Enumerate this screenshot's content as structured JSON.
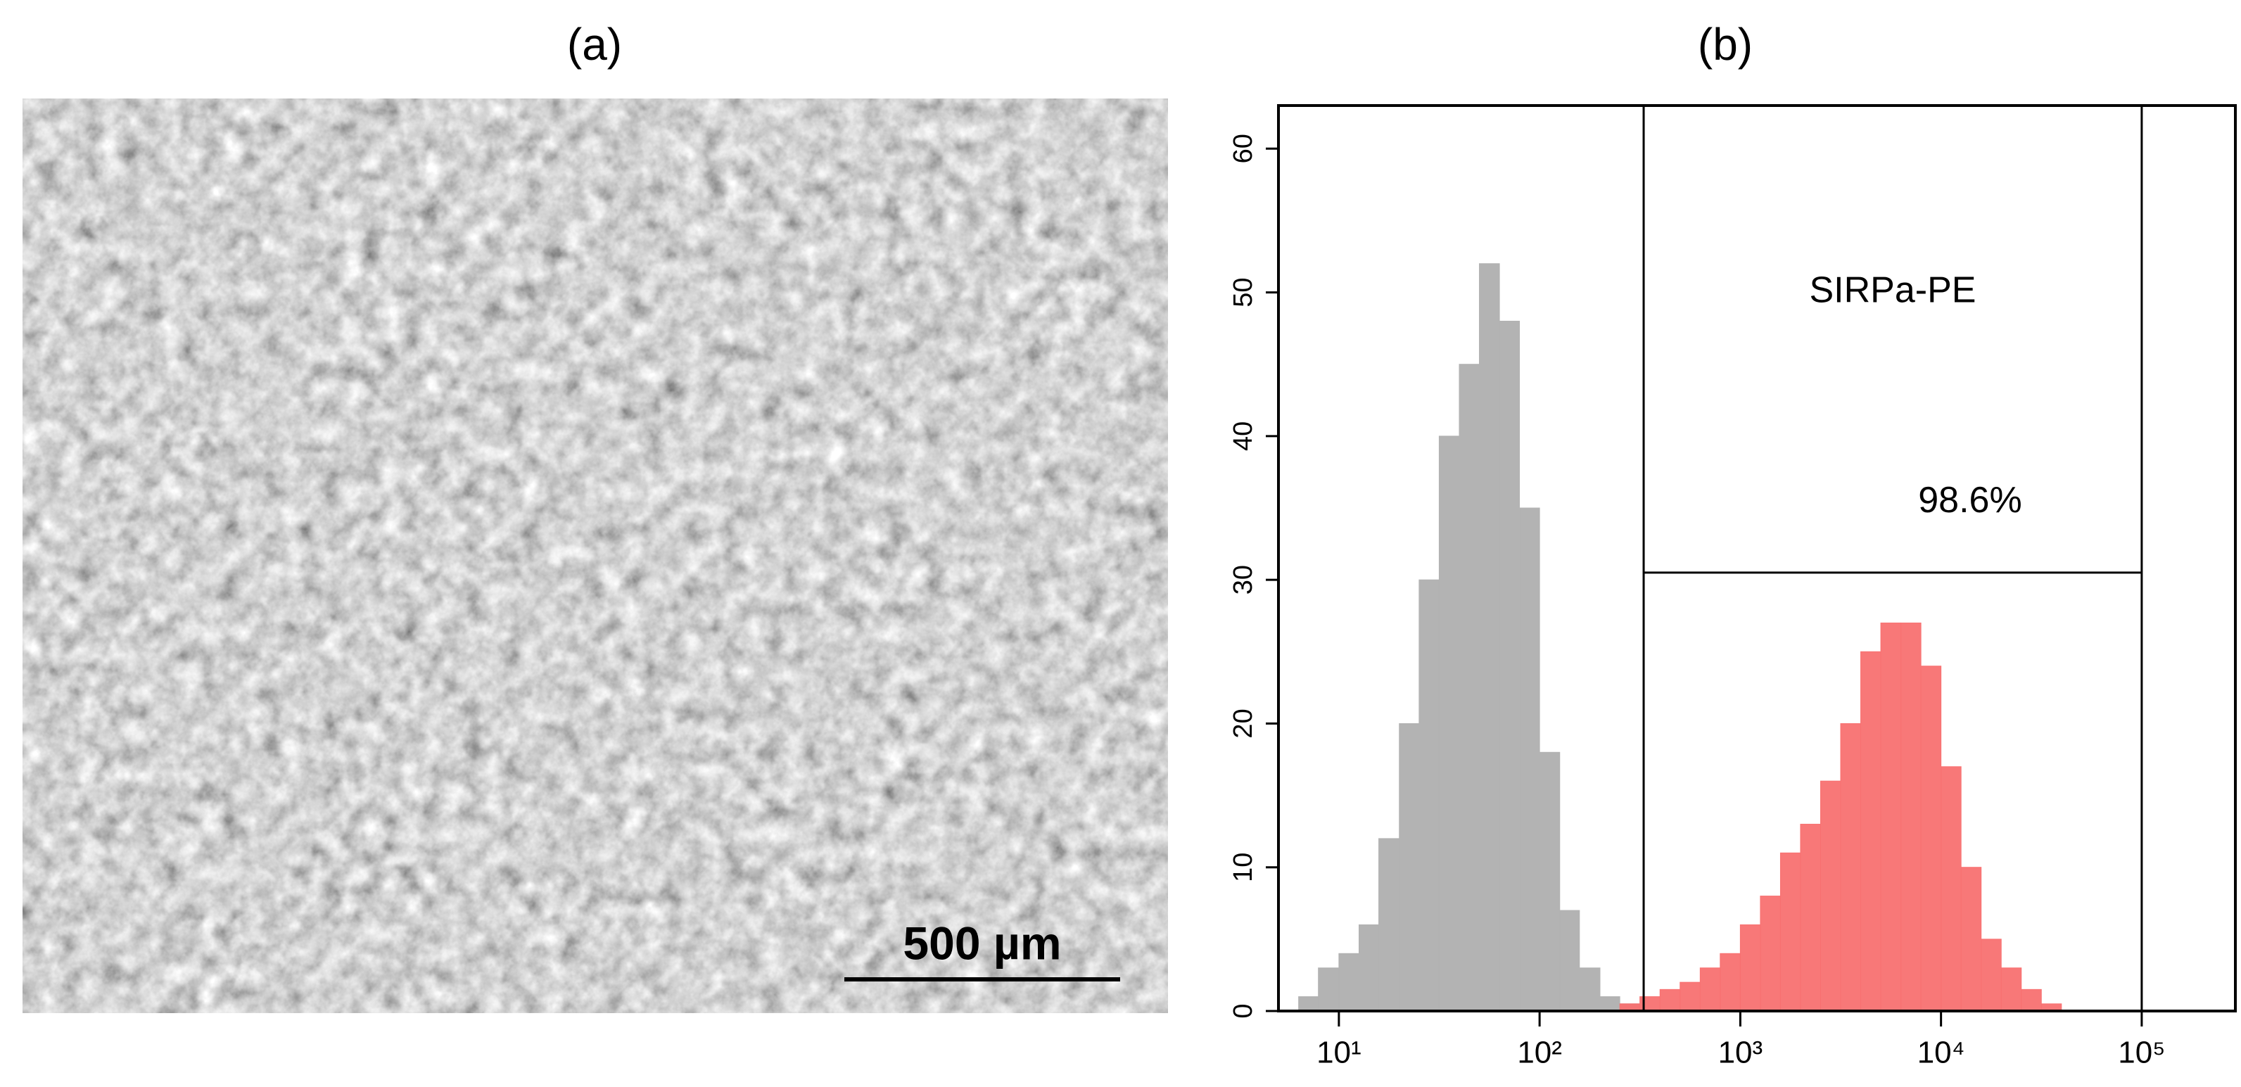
{
  "panels": {
    "a": {
      "label": "(a)",
      "scale_bar": "500 µm"
    }
  },
  "chart_data": {
    "type": "histogram",
    "title": "(b)",
    "log_x": true,
    "xlim": [
      5,
      300000
    ],
    "xticks": [
      {
        "value": 10,
        "label": "10¹"
      },
      {
        "value": 100,
        "label": "10²"
      },
      {
        "value": 1000,
        "label": "10³"
      },
      {
        "value": 10000,
        "label": "10⁴"
      },
      {
        "value": 100000,
        "label": "10⁵"
      }
    ],
    "ylim": [
      0,
      63
    ],
    "yticks": [
      0,
      10,
      20,
      30,
      40,
      50,
      60
    ],
    "bins": [
      6.3,
      7.9,
      10,
      12.6,
      15.8,
      20,
      25.1,
      31.6,
      39.8,
      50.1,
      63.1,
      79.4,
      100,
      126,
      158,
      200,
      251,
      316,
      398,
      501,
      631,
      794,
      1000,
      1259,
      1585,
      1995,
      2512,
      3162,
      3981,
      5012,
      6310,
      7943,
      10000,
      12589,
      15849,
      19953,
      25119,
      31623,
      39811,
      50119
    ],
    "series": [
      {
        "color": "#b3b3b3",
        "values": [
          1,
          3,
          4,
          6,
          12,
          20,
          30,
          40,
          45,
          52,
          48,
          35,
          18,
          7,
          3,
          1,
          0.5,
          0,
          0,
          0,
          0,
          0,
          0,
          0,
          0,
          0,
          0,
          0,
          0,
          0,
          0,
          0,
          0,
          0,
          0,
          0,
          0,
          0,
          0
        ]
      },
      {
        "color": "#f87171",
        "values": [
          0,
          0,
          0,
          0,
          0,
          0,
          0,
          0,
          0,
          0,
          0,
          0,
          0,
          0,
          0,
          0,
          0.5,
          1,
          1.5,
          2,
          3,
          4,
          6,
          8,
          11,
          13,
          16,
          20,
          25,
          27,
          27,
          24,
          17,
          10,
          5,
          3,
          1.5,
          0.5,
          0
        ]
      }
    ],
    "gate": {
      "xlim": [
        330,
        100000
      ],
      "y": 30.5
    },
    "annotations": [
      "SIRPa-PE",
      "98.6%"
    ]
  }
}
